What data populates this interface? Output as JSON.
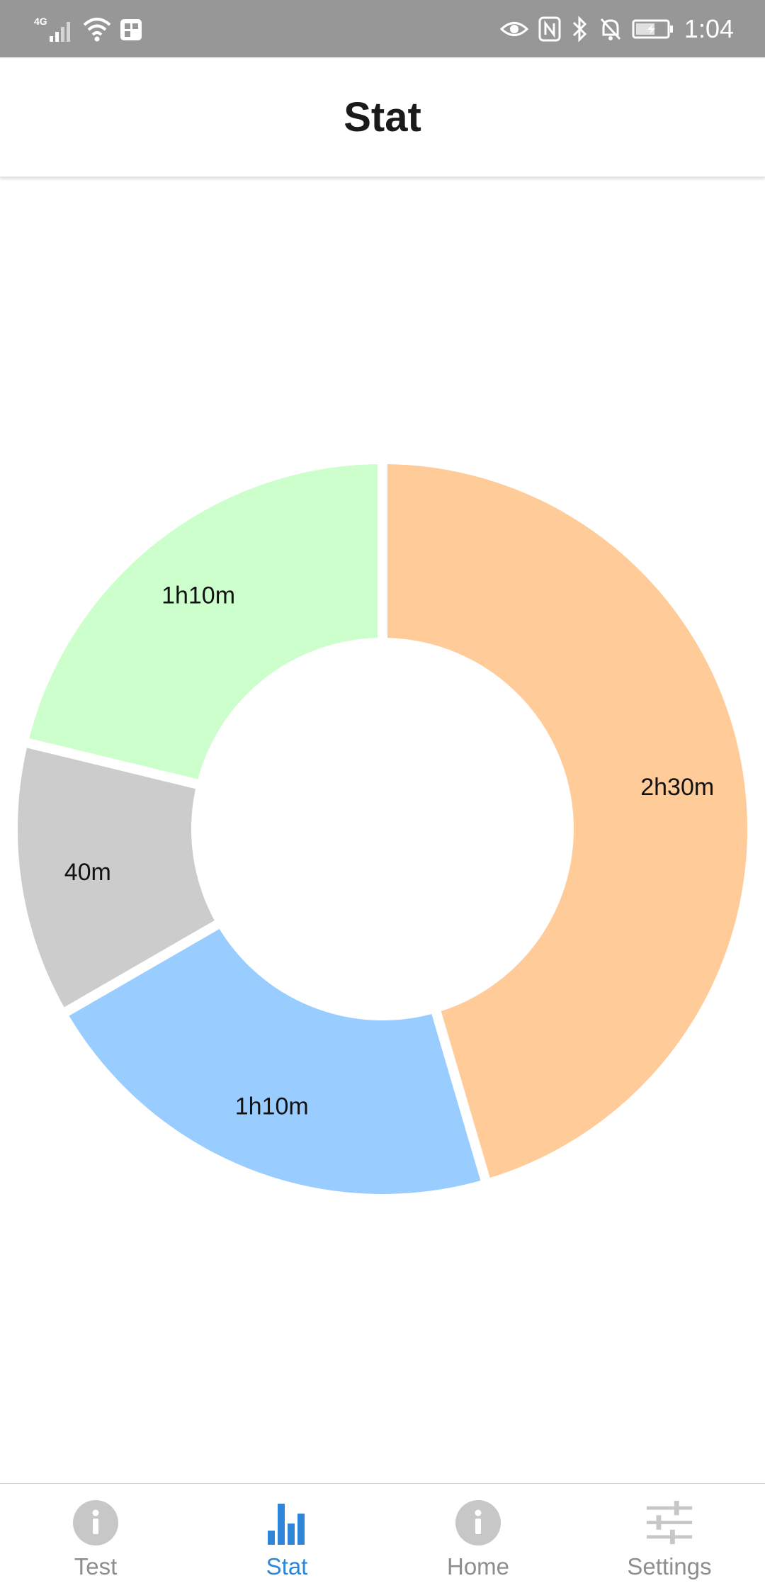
{
  "status_bar": {
    "network": "4G",
    "time": "1:04",
    "icons": [
      "signal-icon",
      "wifi-icon",
      "app-notification-icon",
      "eye-icon",
      "nfc-icon",
      "bluetooth-icon",
      "mute-icon",
      "battery-charging-icon"
    ]
  },
  "header": {
    "title": "Stat"
  },
  "chart_data": {
    "type": "pie",
    "donut": true,
    "title": "",
    "start": "top, clockwise",
    "slices": [
      {
        "label": "2h30m",
        "value": 150,
        "color": "#FFCC99"
      },
      {
        "label": "1h10m",
        "value": 70,
        "color": "#99CCFF"
      },
      {
        "label": "40m",
        "value": 40,
        "color": "#CCCCCC"
      },
      {
        "label": "1h10m",
        "value": 70,
        "color": "#CCFFCC"
      }
    ]
  },
  "tabs": [
    {
      "label": "Test",
      "icon": "info-icon",
      "active": false
    },
    {
      "label": "Stat",
      "icon": "bar-chart-icon",
      "active": true
    },
    {
      "label": "Home",
      "icon": "info-icon",
      "active": false
    },
    {
      "label": "Settings",
      "icon": "sliders-icon",
      "active": false
    }
  ],
  "colors": {
    "accent": "#2F86D8",
    "tab_inactive": "#8E8E8E",
    "status_bar": "#979797"
  }
}
